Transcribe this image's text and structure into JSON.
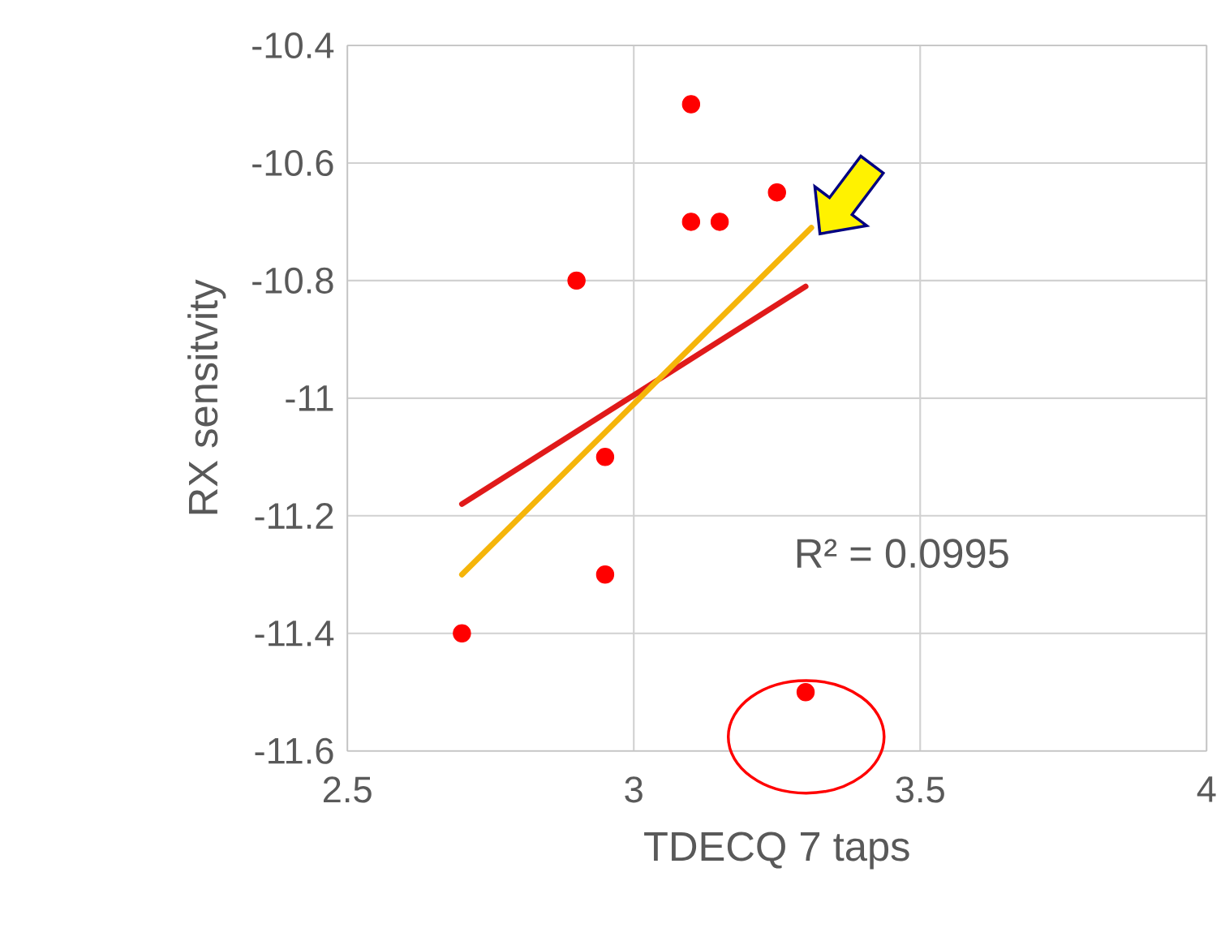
{
  "chart_data": {
    "type": "scatter",
    "xlabel": "TDECQ 7 taps",
    "ylabel": "RX sensitvity",
    "xlim": [
      2.5,
      4
    ],
    "ylim": [
      -11.6,
      -10.4
    ],
    "xticks": [
      2.5,
      3,
      3.5,
      4
    ],
    "yticks": [
      -11.6,
      -11.4,
      -11.2,
      -11,
      -10.8,
      -10.6,
      -10.4
    ],
    "grid": true,
    "annotations": [
      "R² = 0.0995"
    ],
    "series": [
      {
        "color": "#ff0000",
        "marker": "circle",
        "x": [
          3.1,
          3.25,
          3.1,
          3.15,
          2.9,
          2.95,
          2.95,
          2.7,
          3.3
        ],
        "values": [
          -10.5,
          -10.65,
          -10.7,
          -10.7,
          -10.8,
          -11.1,
          -11.3,
          -11.4,
          -11.5
        ]
      },
      {
        "type": "line",
        "color": "#e01a1a",
        "marker": "none",
        "x": [
          2.7,
          3.3
        ],
        "values": [
          -11.18,
          -10.81
        ]
      },
      {
        "type": "line",
        "color": "#f5b50a",
        "marker": "none",
        "x": [
          2.7,
          3.31
        ],
        "values": [
          -11.3,
          -10.71
        ]
      }
    ]
  }
}
